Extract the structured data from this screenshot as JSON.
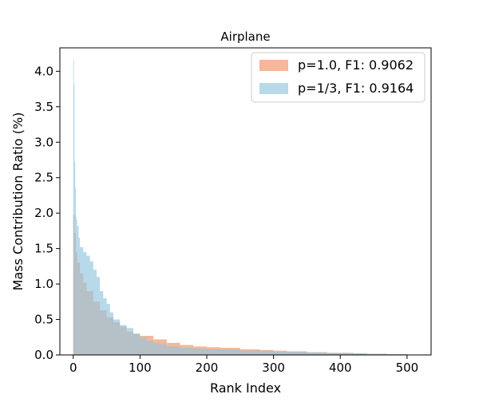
{
  "chart_data": {
    "type": "area",
    "title": "Airplane",
    "xlabel": "Rank Index",
    "ylabel": "Mass Contribution Ratio (%)",
    "xlim": [
      -20,
      536
    ],
    "ylim": [
      0,
      4.33
    ],
    "xticks": [
      0,
      100,
      200,
      300,
      400,
      500
    ],
    "yticks": [
      0.0,
      0.5,
      1.0,
      1.5,
      2.0,
      2.5,
      3.0,
      3.5,
      4.0
    ],
    "xtick_labels": [
      "0",
      "100",
      "200",
      "300",
      "400",
      "500"
    ],
    "ytick_labels": [
      "0.0",
      "0.5",
      "1.0",
      "1.5",
      "2.0",
      "2.5",
      "3.0",
      "3.5",
      "4.0"
    ],
    "grid": false,
    "legend_position": "top-right",
    "series": [
      {
        "name": "p=1.0, F1: 0.9062",
        "color": "#f4a582",
        "opacity": 0.8,
        "points": [
          [
            0,
            1.98
          ],
          [
            2,
            1.72
          ],
          [
            4,
            1.45
          ],
          [
            6,
            1.3
          ],
          [
            10,
            1.15
          ],
          [
            15,
            1.02
          ],
          [
            20,
            0.9
          ],
          [
            30,
            0.75
          ],
          [
            40,
            0.63
          ],
          [
            50,
            0.53
          ],
          [
            60,
            0.46
          ],
          [
            70,
            0.4
          ],
          [
            80,
            0.33
          ],
          [
            90,
            0.3
          ],
          [
            100,
            0.27
          ],
          [
            120,
            0.22
          ],
          [
            140,
            0.17
          ],
          [
            160,
            0.14
          ],
          [
            180,
            0.12
          ],
          [
            200,
            0.11
          ],
          [
            220,
            0.1
          ],
          [
            250,
            0.08
          ],
          [
            280,
            0.07
          ],
          [
            300,
            0.06
          ],
          [
            320,
            0.05
          ],
          [
            350,
            0.04
          ],
          [
            380,
            0.03
          ],
          [
            400,
            0.03
          ],
          [
            420,
            0.02
          ],
          [
            440,
            0.015
          ],
          [
            470,
            0.01
          ],
          [
            500,
            0.005
          ],
          [
            507,
            0.0
          ]
        ]
      },
      {
        "name": "p=1/3, F1: 0.9164",
        "color": "#92c5de",
        "opacity": 0.65,
        "points": [
          [
            0,
            4.16
          ],
          [
            1,
            3.82
          ],
          [
            2,
            2.72
          ],
          [
            3,
            2.35
          ],
          [
            4,
            1.95
          ],
          [
            5,
            1.9
          ],
          [
            6,
            1.82
          ],
          [
            8,
            1.65
          ],
          [
            10,
            1.52
          ],
          [
            15,
            1.45
          ],
          [
            20,
            1.4
          ],
          [
            25,
            1.32
          ],
          [
            30,
            1.2
          ],
          [
            35,
            1.1
          ],
          [
            40,
            0.9
          ],
          [
            45,
            0.8
          ],
          [
            50,
            0.72
          ],
          [
            55,
            0.6
          ],
          [
            60,
            0.5
          ],
          [
            70,
            0.42
          ],
          [
            80,
            0.38
          ],
          [
            90,
            0.3
          ],
          [
            100,
            0.25
          ],
          [
            110,
            0.2
          ],
          [
            120,
            0.17
          ],
          [
            130,
            0.15
          ],
          [
            140,
            0.12
          ],
          [
            160,
            0.1
          ],
          [
            180,
            0.09
          ],
          [
            200,
            0.08
          ],
          [
            250,
            0.06
          ],
          [
            300,
            0.045
          ],
          [
            350,
            0.035
          ],
          [
            380,
            0.03
          ],
          [
            410,
            0.025
          ],
          [
            440,
            0.015
          ],
          [
            470,
            0.01
          ],
          [
            500,
            0.005
          ],
          [
            510,
            0.0
          ]
        ]
      }
    ]
  }
}
